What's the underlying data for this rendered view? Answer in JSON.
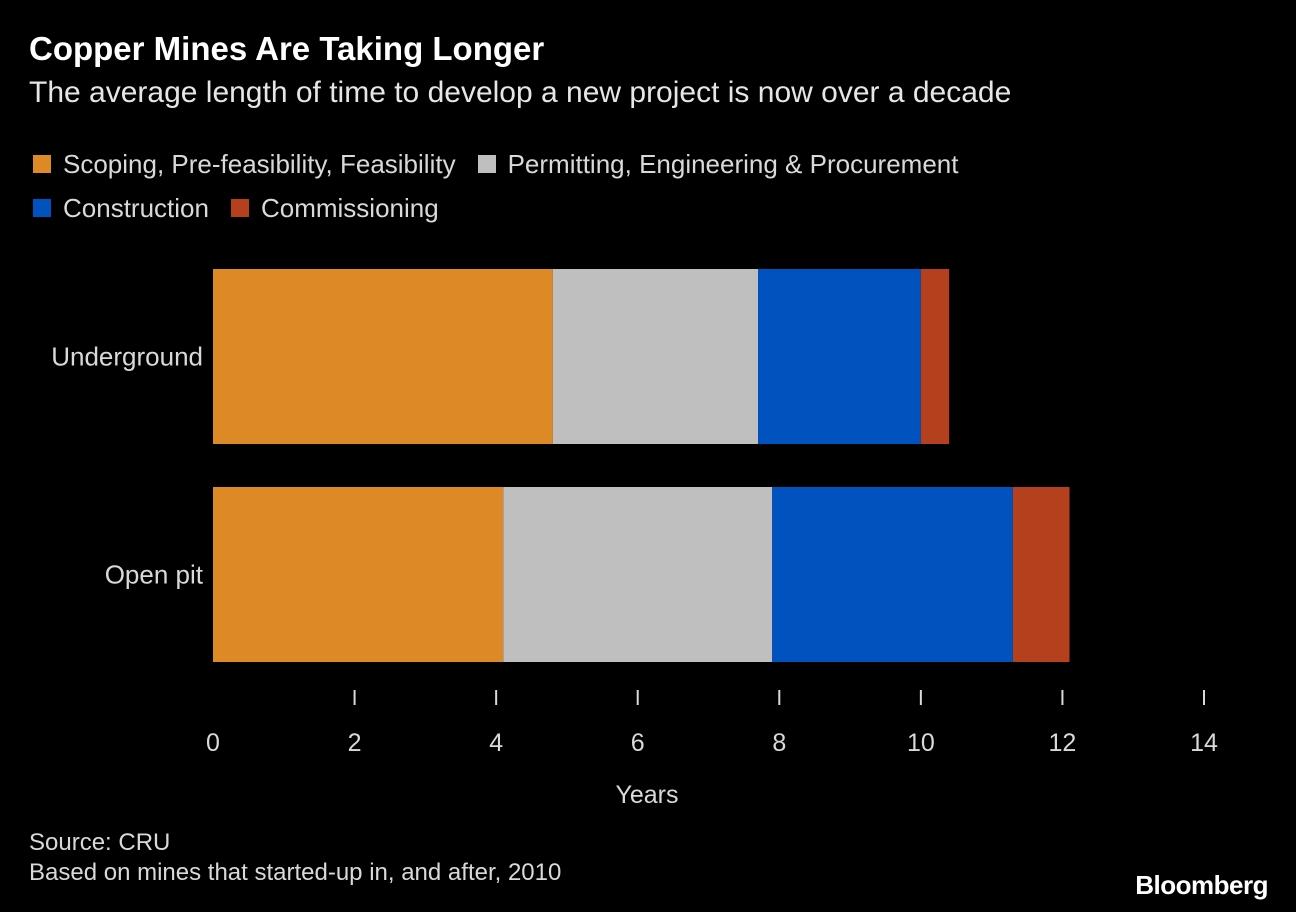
{
  "chart_data": {
    "type": "bar",
    "orientation": "horizontal",
    "stacked": true,
    "title": "Copper Mines Are Taking Longer",
    "subtitle": "The average length of time to develop a new project is now over a decade",
    "categories": [
      "Underground",
      "Open pit"
    ],
    "series": [
      {
        "name": "Scoping, Pre-feasibility, Feasibility",
        "color": "#DD8A26",
        "values": [
          4.8,
          4.1
        ]
      },
      {
        "name": "Permitting, Engineering & Procurement",
        "color": "#BFBFBF",
        "values": [
          2.9,
          3.8
        ]
      },
      {
        "name": "Construction",
        "color": "#0052BE",
        "values": [
          2.3,
          3.4
        ]
      },
      {
        "name": "Commissioning",
        "color": "#B5401E",
        "values": [
          0.4,
          0.8
        ]
      }
    ],
    "xlabel": "Years",
    "ylabel": "",
    "xlim": [
      0,
      14
    ],
    "xticks": [
      0,
      2,
      4,
      6,
      8,
      10,
      12,
      14
    ],
    "grid": false,
    "legend": "top-left"
  },
  "footer": {
    "source": "Source: CRU",
    "note": "Based on mines that started-up in, and after, 2010",
    "logo": "Bloomberg"
  }
}
